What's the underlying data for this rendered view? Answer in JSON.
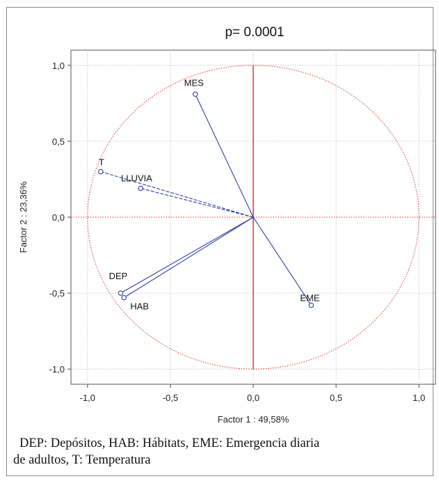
{
  "chart_data": {
    "type": "scatter",
    "title": "p= 0.0001",
    "xlabel": "Factor 1 : 49,58%",
    "ylabel": "Factor 2 : 23,36%",
    "xlim": [
      -1.1,
      1.1
    ],
    "ylim": [
      -1.1,
      1.1
    ],
    "grid": true,
    "unit_circle": true,
    "xticks": [
      "-1,0",
      "-0,5",
      "0,0",
      "0,5",
      "1,0"
    ],
    "yticks": [
      "1,0",
      "0,5",
      "0,0",
      "-0,5",
      "-1,0"
    ],
    "points": [
      {
        "label": "MES",
        "x": -0.35,
        "y": 0.81,
        "dashed": false
      },
      {
        "label": "T",
        "x": -0.92,
        "y": 0.3,
        "dashed": true
      },
      {
        "label": "LLUVIA",
        "x": -0.68,
        "y": 0.19,
        "dashed": true
      },
      {
        "label": "DEP",
        "x": -0.8,
        "y": -0.5,
        "dashed": false
      },
      {
        "label": "HAB",
        "x": -0.78,
        "y": -0.53,
        "dashed": false
      },
      {
        "label": "EME",
        "x": 0.35,
        "y": -0.58,
        "dashed": false
      }
    ],
    "colors": {
      "vector": "#2c3ea8",
      "axis": "#e01010",
      "circle": "#e03030",
      "grid": "#b8b8b8"
    }
  },
  "caption": {
    "line1": "DEP: Depósitos, HAB: Hábitats, EME: Emergencia diaria",
    "line2": "de adultos, T: Temperatura"
  }
}
